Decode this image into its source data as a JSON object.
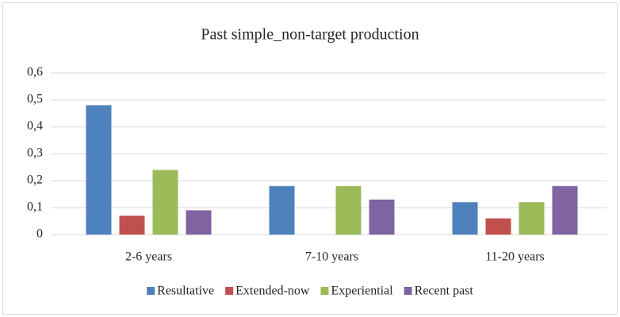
{
  "chart_data": {
    "type": "bar",
    "title": "Past simple_non-target production",
    "categories": [
      "2-6 years",
      "7-10 years",
      "11-20 years"
    ],
    "series": [
      {
        "name": "Resultative",
        "color": "#4f81bd",
        "values": [
          0.48,
          0.18,
          0.12
        ]
      },
      {
        "name": "Extended-now",
        "color": "#c0504d",
        "values": [
          0.07,
          0,
          0.06
        ]
      },
      {
        "name": "Experiential",
        "color": "#9bbb59",
        "values": [
          0.24,
          0.18,
          0.12
        ]
      },
      {
        "name": "Recent past",
        "color": "#8064a2",
        "values": [
          0.09,
          0.13,
          0.18
        ]
      }
    ],
    "ylim": [
      0,
      0.6
    ],
    "yticks": [
      0,
      {
        "value": 0.1,
        "label": "0,1"
      },
      {
        "value": 0.2,
        "label": "0,2"
      },
      {
        "value": 0.3,
        "label": "0,3"
      },
      {
        "value": 0.4,
        "label": "0,4"
      },
      {
        "value": 0.5,
        "label": "0,5"
      },
      {
        "value": 0.6,
        "label": "0,6"
      }
    ],
    "grid": true,
    "legend": "bottom"
  }
}
